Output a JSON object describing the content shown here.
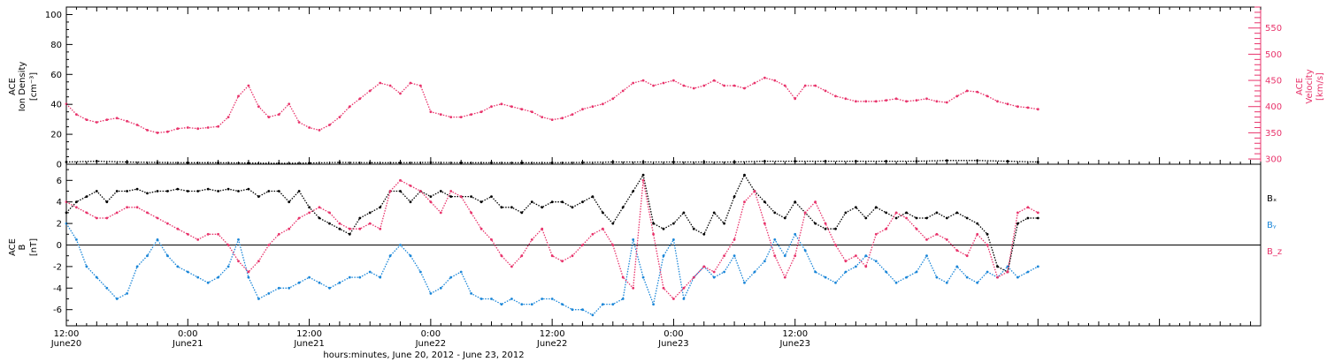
{
  "chart_data": [
    {
      "type": "scatter",
      "panel": "top",
      "ylabel_lines": [
        "ACE",
        "Ion Density",
        "[cm⁻³]"
      ],
      "ylim": [
        0,
        105
      ],
      "yticks": [
        0,
        20,
        40,
        60,
        80,
        100
      ],
      "y2label_lines": [
        "ACE",
        "Velocity",
        "[km/s]"
      ],
      "y2lim": [
        290,
        590
      ],
      "y2ticks": [
        300,
        350,
        400,
        450,
        500,
        550
      ],
      "series": [
        {
          "axis": "left",
          "color": "#000000",
          "x": [
            0,
            3,
            6,
            9,
            12,
            15,
            18,
            21,
            24,
            27,
            30,
            33,
            36,
            39,
            42,
            45,
            48,
            51,
            54,
            57,
            60,
            63,
            66,
            69,
            72,
            75,
            78,
            81,
            84,
            87,
            90,
            93,
            96
          ],
          "y": [
            1.5,
            2.0,
            1.5,
            1.2,
            1.0,
            1.0,
            0.8,
            0.6,
            0.8,
            1.2,
            1.0,
            1.0,
            1.2,
            1.0,
            1.0,
            1.0,
            1.0,
            1.2,
            1.5,
            1.5,
            1.5,
            1.5,
            1.5,
            2.0,
            2.0,
            2.0,
            2.0,
            2.0,
            2.0,
            2.5,
            2.5,
            2.0,
            1.5
          ]
        },
        {
          "axis": "right",
          "color": "#e8336b",
          "x": [
            0,
            1,
            2,
            3,
            4,
            5,
            6,
            7,
            8,
            9,
            10,
            11,
            12,
            13,
            14,
            15,
            16,
            17,
            18,
            19,
            20,
            21,
            22,
            23,
            24,
            25,
            26,
            27,
            28,
            29,
            30,
            31,
            32,
            33,
            34,
            35,
            36,
            37,
            38,
            39,
            40,
            41,
            42,
            43,
            44,
            45,
            46,
            47,
            48,
            49,
            50,
            51,
            52,
            53,
            54,
            55,
            56,
            57,
            58,
            59,
            60,
            61,
            62,
            63,
            64,
            65,
            66,
            67,
            68,
            69,
            70,
            71,
            72,
            73,
            74,
            75,
            76,
            77,
            78,
            79,
            80,
            81,
            82,
            83,
            84,
            85,
            86,
            87,
            88,
            89,
            90,
            91,
            92,
            93,
            94,
            95,
            96
          ],
          "y": [
            405,
            385,
            375,
            370,
            375,
            378,
            372,
            365,
            355,
            350,
            352,
            358,
            360,
            358,
            360,
            362,
            380,
            420,
            440,
            400,
            380,
            385,
            405,
            370,
            360,
            355,
            365,
            380,
            400,
            415,
            430,
            445,
            440,
            425,
            445,
            440,
            390,
            385,
            380,
            380,
            385,
            390,
            400,
            405,
            400,
            395,
            390,
            380,
            375,
            378,
            385,
            395,
            400,
            405,
            415,
            430,
            445,
            450,
            440,
            445,
            450,
            440,
            435,
            440,
            450,
            440,
            440,
            435,
            445,
            455,
            450,
            440,
            415,
            440,
            440,
            430,
            420,
            415,
            410,
            410,
            410,
            412,
            415,
            410,
            412,
            415,
            410,
            408,
            420,
            430,
            428,
            420,
            410,
            405,
            400,
            398,
            395
          ]
        }
      ]
    },
    {
      "type": "scatter",
      "panel": "bottom",
      "ylabel_lines": [
        "ACE",
        "B",
        "[nT]"
      ],
      "ylim": [
        -7.5,
        7.5
      ],
      "yticks": [
        -6,
        -4,
        -2,
        0,
        2,
        4,
        6
      ],
      "legend_position": "right",
      "series": [
        {
          "name": "Bₓ",
          "color": "#000000",
          "x": [
            0,
            1,
            2,
            3,
            4,
            5,
            6,
            7,
            8,
            9,
            10,
            11,
            12,
            13,
            14,
            15,
            16,
            17,
            18,
            19,
            20,
            21,
            22,
            23,
            24,
            25,
            26,
            27,
            28,
            29,
            30,
            31,
            32,
            33,
            34,
            35,
            36,
            37,
            38,
            39,
            40,
            41,
            42,
            43,
            44,
            45,
            46,
            47,
            48,
            49,
            50,
            51,
            52,
            53,
            54,
            55,
            56,
            57,
            58,
            59,
            60,
            61,
            62,
            63,
            64,
            65,
            66,
            67,
            68,
            69,
            70,
            71,
            72,
            73,
            74,
            75,
            76,
            77,
            78,
            79,
            80,
            81,
            82,
            83,
            84,
            85,
            86,
            87,
            88,
            89,
            90,
            91,
            92,
            93,
            94,
            95,
            96
          ],
          "y": [
            3.0,
            4.0,
            4.5,
            5.0,
            4.0,
            5.0,
            5.0,
            5.2,
            4.8,
            5.0,
            5.0,
            5.2,
            5.0,
            5.0,
            5.2,
            5.0,
            5.2,
            5.0,
            5.2,
            4.5,
            5.0,
            5.0,
            4.0,
            5.0,
            3.5,
            2.5,
            2.0,
            1.5,
            1.0,
            2.5,
            3.0,
            3.5,
            5.0,
            5.0,
            4.0,
            5.0,
            4.5,
            5.0,
            4.5,
            4.5,
            4.5,
            4.0,
            4.5,
            3.5,
            3.5,
            3.0,
            4.0,
            3.5,
            4.0,
            4.0,
            3.5,
            4.0,
            4.5,
            3.0,
            2.0,
            3.5,
            5.0,
            6.5,
            2.0,
            1.5,
            2.0,
            3.0,
            1.5,
            1.0,
            3.0,
            2.0,
            4.5,
            6.5,
            5.0,
            4.0,
            3.0,
            2.5,
            4.0,
            3.0,
            2.0,
            1.5,
            1.5,
            3.0,
            3.5,
            2.5,
            3.5,
            3.0,
            2.5,
            3.0,
            2.5,
            2.5,
            3.0,
            2.5,
            3.0,
            2.5,
            2.0,
            1.0,
            -2.0,
            -2.5,
            2.0,
            2.5,
            2.5
          ]
        },
        {
          "name": "Bᵧ",
          "color": "#1a86d8",
          "x": [
            0,
            1,
            2,
            3,
            4,
            5,
            6,
            7,
            8,
            9,
            10,
            11,
            12,
            13,
            14,
            15,
            16,
            17,
            18,
            19,
            20,
            21,
            22,
            23,
            24,
            25,
            26,
            27,
            28,
            29,
            30,
            31,
            32,
            33,
            34,
            35,
            36,
            37,
            38,
            39,
            40,
            41,
            42,
            43,
            44,
            45,
            46,
            47,
            48,
            49,
            50,
            51,
            52,
            53,
            54,
            55,
            56,
            57,
            58,
            59,
            60,
            61,
            62,
            63,
            64,
            65,
            66,
            67,
            68,
            69,
            70,
            71,
            72,
            73,
            74,
            75,
            76,
            77,
            78,
            79,
            80,
            81,
            82,
            83,
            84,
            85,
            86,
            87,
            88,
            89,
            90,
            91,
            92,
            93,
            94,
            95,
            96
          ],
          "y": [
            2.0,
            0.5,
            -2.0,
            -3.0,
            -4.0,
            -5.0,
            -4.5,
            -2.0,
            -1.0,
            0.5,
            -1.0,
            -2.0,
            -2.5,
            -3.0,
            -3.5,
            -3.0,
            -2.0,
            0.5,
            -3.0,
            -5.0,
            -4.5,
            -4.0,
            -4.0,
            -3.5,
            -3.0,
            -3.5,
            -4.0,
            -3.5,
            -3.0,
            -3.0,
            -2.5,
            -3.0,
            -1.0,
            0.0,
            -1.0,
            -2.5,
            -4.5,
            -4.0,
            -3.0,
            -2.5,
            -4.5,
            -5.0,
            -5.0,
            -5.5,
            -5.0,
            -5.5,
            -5.5,
            -5.0,
            -5.0,
            -5.5,
            -6.0,
            -6.0,
            -6.5,
            -5.5,
            -5.5,
            -5.0,
            0.5,
            -3.0,
            -5.5,
            -1.0,
            0.5,
            -5.0,
            -3.0,
            -2.0,
            -3.0,
            -2.5,
            -1.0,
            -3.5,
            -2.5,
            -1.5,
            0.5,
            -1.0,
            1.0,
            -0.5,
            -2.5,
            -3.0,
            -3.5,
            -2.5,
            -2.0,
            -1.0,
            -1.5,
            -2.5,
            -3.5,
            -3.0,
            -2.5,
            -1.0,
            -3.0,
            -3.5,
            -2.0,
            -3.0,
            -3.5,
            -2.5,
            -3.0,
            -2.0,
            -3.0,
            -2.5,
            -2.0
          ]
        },
        {
          "name": "B_z",
          "color": "#e8336b",
          "x": [
            0,
            1,
            2,
            3,
            4,
            5,
            6,
            7,
            8,
            9,
            10,
            11,
            12,
            13,
            14,
            15,
            16,
            17,
            18,
            19,
            20,
            21,
            22,
            23,
            24,
            25,
            26,
            27,
            28,
            29,
            30,
            31,
            32,
            33,
            34,
            35,
            36,
            37,
            38,
            39,
            40,
            41,
            42,
            43,
            44,
            45,
            46,
            47,
            48,
            49,
            50,
            51,
            52,
            53,
            54,
            55,
            56,
            57,
            58,
            59,
            60,
            61,
            62,
            63,
            64,
            65,
            66,
            67,
            68,
            69,
            70,
            71,
            72,
            73,
            74,
            75,
            76,
            77,
            78,
            79,
            80,
            81,
            82,
            83,
            84,
            85,
            86,
            87,
            88,
            89,
            90,
            91,
            92,
            93,
            94,
            95,
            96
          ],
          "y": [
            4.0,
            3.5,
            3.0,
            2.5,
            2.5,
            3.0,
            3.5,
            3.5,
            3.0,
            2.5,
            2.0,
            1.5,
            1.0,
            0.5,
            1.0,
            1.0,
            0.0,
            -1.5,
            -2.5,
            -1.5,
            0.0,
            1.0,
            1.5,
            2.5,
            3.0,
            3.5,
            3.0,
            2.0,
            1.5,
            1.5,
            2.0,
            1.5,
            5.0,
            6.0,
            5.5,
            5.0,
            4.0,
            3.0,
            5.0,
            4.5,
            3.0,
            1.5,
            0.5,
            -1.0,
            -2.0,
            -1.0,
            0.5,
            1.5,
            -1.0,
            -1.5,
            -1.0,
            0.0,
            1.0,
            1.5,
            0.0,
            -3.0,
            -4.0,
            6.0,
            1.0,
            -4.0,
            -5.0,
            -4.0,
            -3.0,
            -2.0,
            -2.5,
            -1.0,
            0.5,
            4.0,
            5.0,
            2.0,
            -1.0,
            -3.0,
            -1.0,
            3.0,
            4.0,
            2.0,
            0.0,
            -1.5,
            -1.0,
            -2.0,
            1.0,
            1.5,
            3.0,
            2.5,
            1.5,
            0.5,
            1.0,
            0.5,
            -0.5,
            -1.0,
            1.0,
            0.0,
            -3.0,
            -2.5,
            3.0,
            3.5,
            3.0
          ]
        }
      ]
    },
    {
      "type": "shared-x-axis",
      "xlim": [
        0,
        118
      ],
      "xticks": [
        {
          "x": 0,
          "line1": "12:00",
          "line2": "June20"
        },
        {
          "x": 12,
          "line1": "0:00",
          "line2": "June21"
        },
        {
          "x": 24,
          "line1": "12:00",
          "line2": "June21"
        },
        {
          "x": 36,
          "line1": "0:00",
          "line2": "June22"
        },
        {
          "x": 48,
          "line1": "12:00",
          "line2": "June22"
        },
        {
          "x": 60,
          "line1": "0:00",
          "line2": "June23"
        },
        {
          "x": 72,
          "line1": "12:00",
          "line2": "June23"
        }
      ],
      "xlabel": "hours:minutes, June 20, 2012 - June 23, 2012"
    }
  ]
}
